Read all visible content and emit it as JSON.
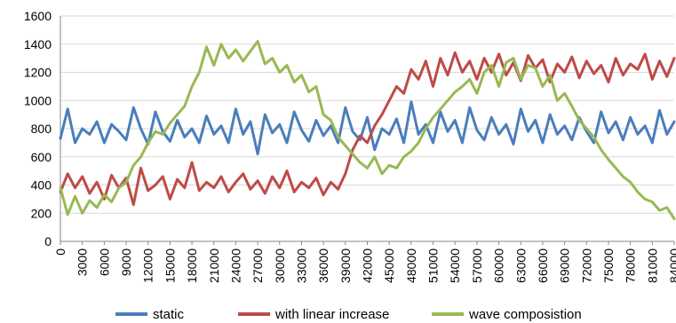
{
  "chart_data": {
    "type": "line",
    "xlim": [
      0,
      84000
    ],
    "ylim": [
      0,
      1600
    ],
    "y_ticks": [
      0,
      200,
      400,
      600,
      800,
      1000,
      1200,
      1400,
      1600
    ],
    "x_ticks": [
      0,
      3000,
      6000,
      9000,
      12000,
      15000,
      18000,
      21000,
      24000,
      27000,
      30000,
      33000,
      36000,
      39000,
      42000,
      45000,
      48000,
      51000,
      54000,
      57000,
      60000,
      63000,
      66000,
      69000,
      72000,
      75000,
      78000,
      81000,
      84000
    ],
    "grid": "horizontal",
    "legend": "bottom",
    "series": [
      {
        "name": "static",
        "color": "#4a7ebb",
        "x": [
          0,
          1000,
          2000,
          3000,
          4000,
          5000,
          6000,
          7000,
          8000,
          9000,
          10000,
          11000,
          12000,
          13000,
          14000,
          15000,
          16000,
          17000,
          18000,
          19000,
          20000,
          21000,
          22000,
          23000,
          24000,
          25000,
          26000,
          27000,
          28000,
          29000,
          30000,
          31000,
          32000,
          33000,
          34000,
          35000,
          36000,
          37000,
          38000,
          39000,
          40000,
          41000,
          42000,
          43000,
          44000,
          45000,
          46000,
          47000,
          48000,
          49000,
          50000,
          51000,
          52000,
          53000,
          54000,
          55000,
          56000,
          57000,
          58000,
          59000,
          60000,
          61000,
          62000,
          63000,
          64000,
          65000,
          66000,
          67000,
          68000,
          69000,
          70000,
          71000,
          72000,
          73000,
          74000,
          75000,
          76000,
          77000,
          78000,
          79000,
          80000,
          81000,
          82000,
          83000,
          84000
        ],
        "values": [
          730,
          940,
          700,
          800,
          760,
          850,
          700,
          830,
          780,
          720,
          950,
          800,
          690,
          920,
          780,
          710,
          860,
          740,
          800,
          700,
          890,
          760,
          820,
          700,
          940,
          760,
          850,
          620,
          900,
          770,
          830,
          700,
          920,
          790,
          710,
          860,
          750,
          820,
          700,
          950,
          780,
          720,
          880,
          650,
          800,
          760,
          870,
          700,
          990,
          760,
          830,
          700,
          920,
          780,
          860,
          700,
          950,
          790,
          720,
          880,
          760,
          830,
          690,
          940,
          780,
          860,
          700,
          900,
          760,
          820,
          720,
          880,
          780,
          700,
          920,
          770,
          850,
          720,
          880,
          760,
          820,
          700,
          930,
          760,
          850
        ]
      },
      {
        "name": "with linear increase",
        "color": "#be4b48",
        "x": [
          0,
          1000,
          2000,
          3000,
          4000,
          5000,
          6000,
          7000,
          8000,
          9000,
          10000,
          11000,
          12000,
          13000,
          14000,
          15000,
          16000,
          17000,
          18000,
          19000,
          20000,
          21000,
          22000,
          23000,
          24000,
          25000,
          26000,
          27000,
          28000,
          29000,
          30000,
          31000,
          32000,
          33000,
          34000,
          35000,
          36000,
          37000,
          38000,
          39000,
          40000,
          41000,
          42000,
          43000,
          44000,
          45000,
          46000,
          47000,
          48000,
          49000,
          50000,
          51000,
          52000,
          53000,
          54000,
          55000,
          56000,
          57000,
          58000,
          59000,
          60000,
          61000,
          62000,
          63000,
          64000,
          65000,
          66000,
          67000,
          68000,
          69000,
          70000,
          71000,
          72000,
          73000,
          74000,
          75000,
          76000,
          77000,
          78000,
          79000,
          80000,
          81000,
          82000,
          83000,
          84000
        ],
        "values": [
          350,
          480,
          380,
          460,
          340,
          420,
          300,
          470,
          380,
          450,
          260,
          520,
          360,
          400,
          460,
          300,
          440,
          380,
          560,
          360,
          420,
          380,
          460,
          350,
          420,
          480,
          370,
          430,
          340,
          460,
          380,
          500,
          350,
          420,
          380,
          450,
          330,
          420,
          370,
          480,
          650,
          750,
          700,
          820,
          900,
          1000,
          1100,
          1050,
          1220,
          1150,
          1280,
          1100,
          1300,
          1180,
          1340,
          1200,
          1280,
          1150,
          1300,
          1200,
          1330,
          1180,
          1270,
          1140,
          1320,
          1230,
          1290,
          1130,
          1260,
          1200,
          1310,
          1160,
          1280,
          1190,
          1250,
          1130,
          1300,
          1180,
          1260,
          1220,
          1330,
          1150,
          1280,
          1170,
          1300
        ]
      },
      {
        "name": "wave composistion",
        "color": "#98b954",
        "x": [
          0,
          1000,
          2000,
          3000,
          4000,
          5000,
          6000,
          7000,
          8000,
          9000,
          10000,
          11000,
          12000,
          13000,
          14000,
          15000,
          16000,
          17000,
          18000,
          19000,
          20000,
          21000,
          22000,
          23000,
          24000,
          25000,
          26000,
          27000,
          28000,
          29000,
          30000,
          31000,
          32000,
          33000,
          34000,
          35000,
          36000,
          37000,
          38000,
          39000,
          40000,
          41000,
          42000,
          43000,
          44000,
          45000,
          46000,
          47000,
          48000,
          49000,
          50000,
          51000,
          52000,
          53000,
          54000,
          55000,
          56000,
          57000,
          58000,
          59000,
          60000,
          61000,
          62000,
          63000,
          64000,
          65000,
          66000,
          67000,
          68000,
          69000,
          70000,
          71000,
          72000,
          73000,
          74000,
          75000,
          76000,
          77000,
          78000,
          79000,
          80000,
          81000,
          82000,
          83000,
          84000
        ],
        "values": [
          380,
          190,
          320,
          200,
          290,
          240,
          330,
          280,
          380,
          420,
          540,
          600,
          700,
          780,
          760,
          840,
          900,
          960,
          1100,
          1200,
          1380,
          1250,
          1400,
          1300,
          1360,
          1280,
          1350,
          1420,
          1260,
          1300,
          1200,
          1250,
          1130,
          1180,
          1060,
          1100,
          900,
          860,
          740,
          680,
          620,
          560,
          520,
          600,
          480,
          540,
          520,
          600,
          640,
          700,
          800,
          880,
          940,
          1000,
          1060,
          1100,
          1150,
          1050,
          1200,
          1250,
          1100,
          1270,
          1300,
          1150,
          1250,
          1230,
          1100,
          1180,
          1000,
          1050,
          960,
          860,
          800,
          740,
          650,
          580,
          520,
          460,
          420,
          350,
          300,
          280,
          220,
          240,
          160
        ]
      }
    ]
  }
}
